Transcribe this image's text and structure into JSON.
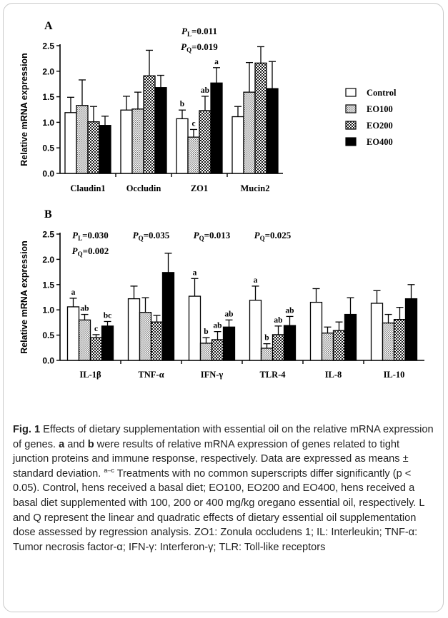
{
  "chart_data": [
    {
      "type": "bar",
      "panel_letter": "A",
      "ylabel": "Relative mRNA expression",
      "ylim": [
        0,
        2.5
      ],
      "yticks": [
        "0.0",
        "0.5",
        "1.0",
        "1.5",
        "2.0",
        "2.5"
      ],
      "categories": [
        "Claudin1",
        "Occludin",
        "ZO1",
        "Mucin2"
      ],
      "series": [
        {
          "name": "Control",
          "pattern": "white",
          "values": [
            1.19,
            1.24,
            1.07,
            1.11
          ],
          "errors": [
            0.3,
            0.27,
            0.17,
            0.2
          ]
        },
        {
          "name": "EO100",
          "pattern": "dots",
          "values": [
            1.33,
            1.26,
            0.71,
            1.59
          ],
          "errors": [
            0.5,
            0.33,
            0.15,
            0.58
          ]
        },
        {
          "name": "EO200",
          "pattern": "checker",
          "values": [
            1.01,
            1.91,
            1.23,
            2.16
          ],
          "errors": [
            0.3,
            0.5,
            0.28,
            0.32
          ]
        },
        {
          "name": "EO400",
          "pattern": "black",
          "values": [
            0.94,
            1.68,
            1.77,
            1.66
          ],
          "errors": [
            0.18,
            0.24,
            0.3,
            0.53
          ]
        }
      ],
      "letters": [
        {
          "category": 2,
          "series": 0,
          "text": "b"
        },
        {
          "category": 2,
          "series": 1,
          "text": "c"
        },
        {
          "category": 2,
          "series": 2,
          "text": "ab"
        },
        {
          "category": 2,
          "series": 3,
          "text": "a"
        }
      ],
      "stats": [
        {
          "category": 2,
          "lines": [
            {
              "sym": "L",
              "val": "0.011"
            },
            {
              "sym": "Q",
              "val": "0.019"
            }
          ]
        }
      ],
      "legend": "right"
    },
    {
      "type": "bar",
      "panel_letter": "B",
      "ylabel": "Relative mRNA expression",
      "ylim": [
        0,
        2.5
      ],
      "yticks": [
        "0.0",
        "0.5",
        "1.0",
        "1.5",
        "2.0",
        "2.5"
      ],
      "categories": [
        "IL-1β",
        "TNF-α",
        "IFN-γ",
        "TLR-4",
        "IL-8",
        "IL-10"
      ],
      "series": [
        {
          "name": "Control",
          "pattern": "white",
          "values": [
            1.06,
            1.22,
            1.27,
            1.19,
            1.15,
            1.13
          ],
          "errors": [
            0.17,
            0.25,
            0.35,
            0.28,
            0.27,
            0.25
          ]
        },
        {
          "name": "EO100",
          "pattern": "dots",
          "values": [
            0.8,
            0.95,
            0.34,
            0.24,
            0.54,
            0.74
          ],
          "errors": [
            0.11,
            0.29,
            0.11,
            0.09,
            0.12,
            0.17
          ]
        },
        {
          "name": "EO200",
          "pattern": "checker",
          "values": [
            0.45,
            0.76,
            0.41,
            0.51,
            0.59,
            0.81
          ],
          "errors": [
            0.06,
            0.13,
            0.16,
            0.17,
            0.17,
            0.24
          ]
        },
        {
          "name": "EO400",
          "pattern": "black",
          "values": [
            0.68,
            1.74,
            0.66,
            0.69,
            0.91,
            1.22
          ],
          "errors": [
            0.09,
            0.38,
            0.14,
            0.18,
            0.33,
            0.28
          ]
        }
      ],
      "letters": [
        {
          "category": 0,
          "series": 0,
          "text": "a"
        },
        {
          "category": 0,
          "series": 1,
          "text": "ab"
        },
        {
          "category": 0,
          "series": 2,
          "text": "c"
        },
        {
          "category": 0,
          "series": 3,
          "text": "bc"
        },
        {
          "category": 2,
          "series": 0,
          "text": "a"
        },
        {
          "category": 2,
          "series": 1,
          "text": "b"
        },
        {
          "category": 2,
          "series": 2,
          "text": "ab"
        },
        {
          "category": 2,
          "series": 3,
          "text": "ab"
        },
        {
          "category": 3,
          "series": 0,
          "text": "a"
        },
        {
          "category": 3,
          "series": 1,
          "text": "b"
        },
        {
          "category": 3,
          "series": 2,
          "text": "ab"
        },
        {
          "category": 3,
          "series": 3,
          "text": "ab"
        }
      ],
      "stats": [
        {
          "category": 0,
          "lines": [
            {
              "sym": "L",
              "val": "0.030"
            },
            {
              "sym": "Q",
              "val": "0.002"
            }
          ]
        },
        {
          "category": 1,
          "lines": [
            {
              "sym": "Q",
              "val": "0.035"
            }
          ]
        },
        {
          "category": 2,
          "lines": [
            {
              "sym": "Q",
              "val": "0.013"
            }
          ]
        },
        {
          "category": 3,
          "lines": [
            {
              "sym": "Q",
              "val": "0.025"
            }
          ]
        }
      ]
    }
  ],
  "caption": {
    "fig_label": "Fig. 1",
    "part1": " Effects of dietary supplementation with essential oil on the relative mRNA expression of genes. ",
    "a": "a",
    "and": " and ",
    "b": "b",
    "part2": " were results of relative mRNA expression of genes related to tight junction proteins and immune response, respectively. Data are expressed as means ± standard deviation. ",
    "sup": "a–c",
    "part3": " Treatments with no common superscripts differ significantly (p < 0.05). Control, hens received a basal diet; EO100, EO200 and EO400, hens received a basal diet supplemented with 100, 200 or 400 mg/kg oregano essential oil, respectively. L and Q represent the linear and quadratic effects of dietary essential oil supplementation dose assessed by regression analysis. ZO1: Zonula occludens 1; IL: Interleukin; TNF-α: Tumor necrosis factor-α; IFN-γ: Interferon-γ; TLR: Toll-like receptors"
  }
}
